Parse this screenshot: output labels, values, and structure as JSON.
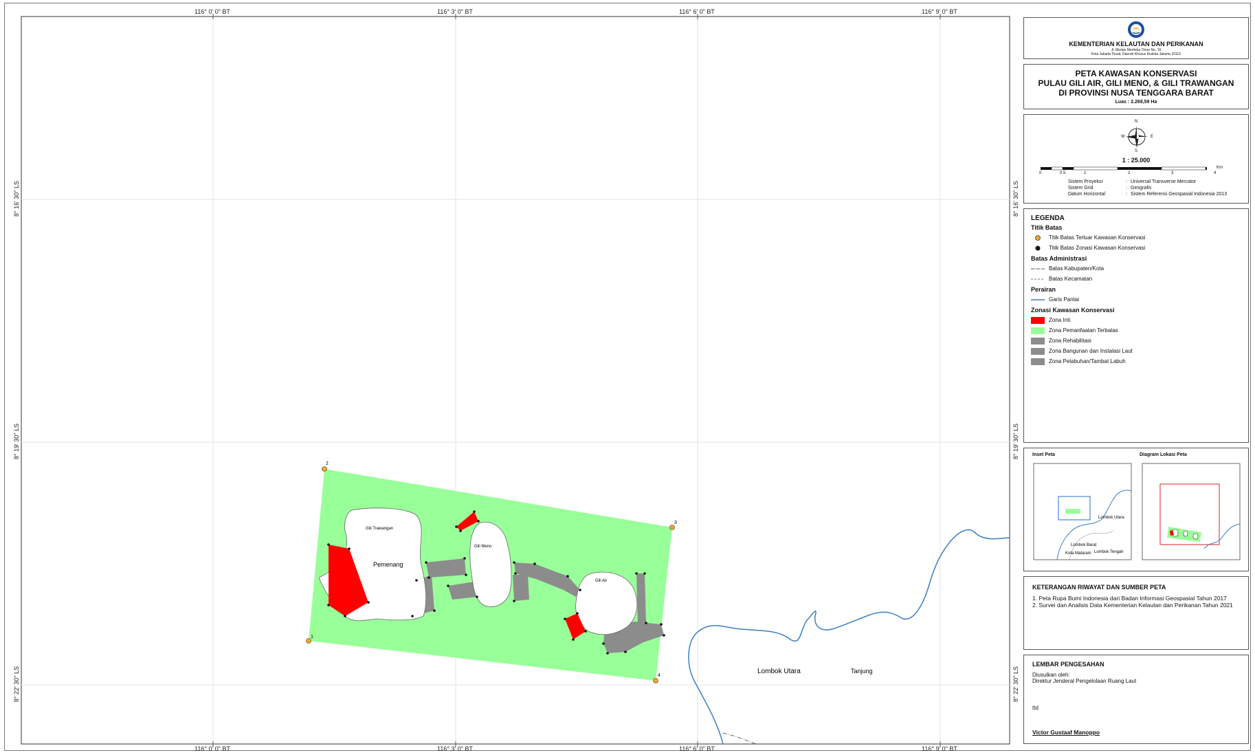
{
  "map": {
    "top_ticks": [
      "116° 0' 0\" BT",
      "116° 3' 0\" BT",
      "116° 6' 0\" BT",
      "116° 9' 0\" BT"
    ],
    "bottom_ticks": [
      "116° 0' 0\" BT",
      "116° 3' 0\" BT",
      "116° 6' 0\" BT",
      "116° 9' 0\" BT"
    ],
    "left_ticks": [
      "8° 16' 30\" LS",
      "8° 19' 30\" LS",
      "8° 22' 30\" LS"
    ],
    "right_ticks": [
      "8° 16' 30\" LS",
      "8° 19' 30\" LS",
      "8° 22' 30\" LS"
    ],
    "labels": {
      "gili_trawangan": "Gili Trawangan",
      "pemenang": "Pemenang",
      "gili_meno": "Gili Meno",
      "gili_air": "Gili Air",
      "lombok_utara": "Lombok Utara",
      "tanjung": "Tanjung"
    },
    "outer_points": [
      "1",
      "2",
      "3",
      "4"
    ]
  },
  "header": {
    "ministry": "KEMENTERIAN KELAUTAN DAN PERIKANAN",
    "address1": "Jl. Medan Merdeka Timur No. 16",
    "address2": "Kota Jakarta Pusat, Daerah Khusus Ibukota Jakarta 10110"
  },
  "title": {
    "line1": "PETA KAWASAN KONSERVASI",
    "line2": "PULAU GILI AIR, GILI MENO, & GILI TRAWANGAN",
    "line3": "DI PROVINSI NUSA TENGGARA BARAT",
    "area": "Luas : 2.268,59 Ha"
  },
  "scale": {
    "north": "N",
    "south": "S",
    "east": "E",
    "west": "W",
    "ratio": "1 : 25.000",
    "ticks": [
      "0",
      "0.5",
      "1",
      "2",
      "3",
      "4"
    ],
    "unit": "Km",
    "projection_label": "Sistem Proyeksi",
    "projection_value": "Universal Transverse Mercator",
    "grid_label": "Sistem Grid",
    "grid_value": "Geografis",
    "datum_label": "Datum Horizontal",
    "datum_value": "Sistem Referensi Geospasial Indonesia 2013",
    "sep": ":"
  },
  "legend": {
    "title": "LEGENDA",
    "titik_batas": "Titik Batas",
    "titik_terluar": "Titik Batas Terluar Kawasan Konservasi",
    "titik_zonasi": "Titik Batas Zonasi Kawasan Konservasi",
    "batas_admin": "Batas Administrasi",
    "batas_kab": "Batas Kabupaten/Kota",
    "batas_kec": "Batas Kecamatan",
    "perairan": "Perairan",
    "garis_pantai": "Garis Pantai",
    "zonasi": "Zonasi Kawasan Konservasi",
    "zona_inti": "Zona Inti",
    "zona_pemanfaatan": "Zona Pemanfaatan Terbatas",
    "zona_rehab": "Zona Rehabilitasi",
    "zona_bangunan": "Zona Bangunan dan Instalasi Laut",
    "zona_pelabuhan": "Zona Pelabuhan/Tambat Labuh",
    "colors": {
      "inti": "#ff0000",
      "pemanfaatan": "#99ff99",
      "other": "#8c8c8c",
      "coast": "#3a7fc1",
      "outer_point": "#f5a623"
    }
  },
  "inset": {
    "inset_title": "Inset Peta",
    "diagram_title": "Diagram Lokasi Peta",
    "lombok_utara": "Lombok Utara",
    "lombok_barat": "Lombok Barat",
    "kota_mataram": "Kota Mataram",
    "lombok_tengah": "Lombok Tengah"
  },
  "history": {
    "title": "KETERANGAN RIWAYAT DAN SUMBER PETA",
    "item1": "1. Peta Rupa Bumi Indonesia dari Badan Informasi Geospasial Tahun 2017",
    "item2": "2. Survei dan Analisis Data Kementerian Kelautan dan Perikanan Tahun 2021"
  },
  "approval": {
    "title": "LEMBAR PENGESAHAN",
    "proposed": "Diusulkan oleh:",
    "by": "Direktur Jenderal Pengelolaan Ruang Laut",
    "ttd": "ttd",
    "name": "Victor Gustaaf Manoppo"
  }
}
